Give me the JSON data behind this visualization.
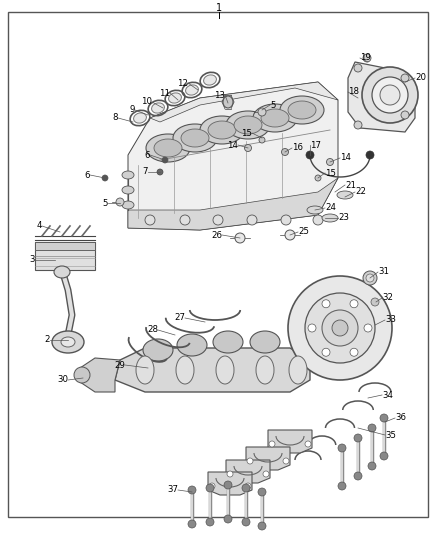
{
  "bg_color": "#ffffff",
  "border_color": "#666666",
  "text_color": "#000000",
  "fig_width": 4.38,
  "fig_height": 5.33,
  "dpi": 100,
  "line_color": "#444444",
  "light_gray": "#cccccc",
  "mid_gray": "#aaaaaa",
  "dark_line": "#333333"
}
